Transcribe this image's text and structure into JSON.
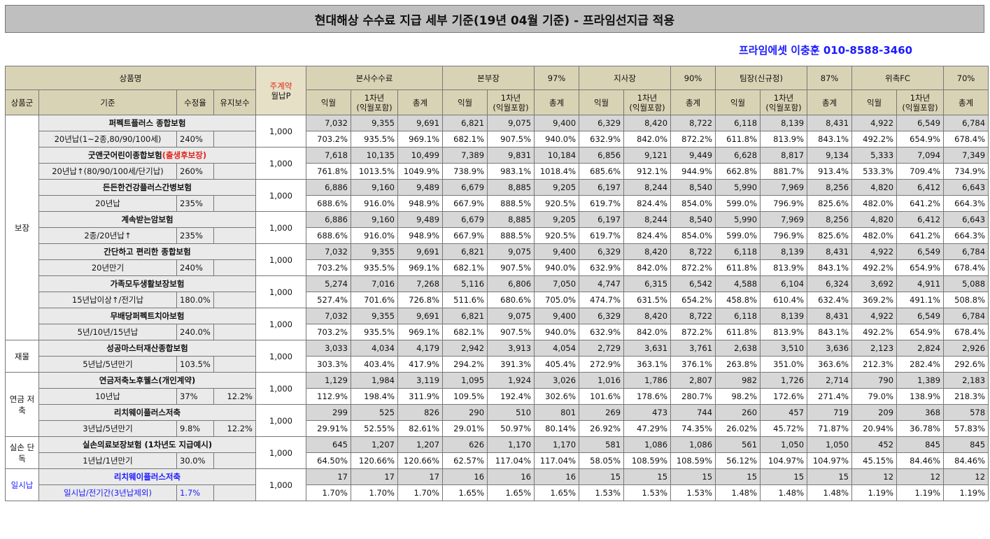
{
  "title": "현대해상 수수료 지급 세부 기준(19년 04월 기준) - 프라임선지급 적용",
  "contact": "프라임에셋 이충훈 010-8588-3460",
  "header": {
    "product_name": "상품명",
    "premium_label_top": "주계약",
    "premium_label_bottom": "월납P",
    "group": "상품군",
    "basis": "기준",
    "commission_rate": "수정율",
    "maintenance": "유지보수",
    "tiers": [
      {
        "name": "본사수수료",
        "pct": ""
      },
      {
        "name": "본부장",
        "pct": "97%"
      },
      {
        "name": "지사장",
        "pct": "90%"
      },
      {
        "name": "팀장(신규정)",
        "pct": "87%"
      },
      {
        "name": "위촉FC",
        "pct": "70%"
      }
    ],
    "col_next_month": "익월",
    "col_year1_top": "1차년",
    "col_year1_bottom": "(익월포함)",
    "col_total": "총계"
  },
  "groups": [
    {
      "label": "보장",
      "products": [
        {
          "name": "퍼펙트플러스 종합보험",
          "basis": "20년납(1~2종,80/90/100세)",
          "rate": "240%",
          "maint": "",
          "premium": "1,000",
          "nums": [
            "7,032",
            "9,355",
            "9,691",
            "6,821",
            "9,075",
            "9,400",
            "6,329",
            "8,420",
            "8,722",
            "6,118",
            "8,139",
            "8,431",
            "4,922",
            "6,549",
            "6,784"
          ],
          "pcts": [
            "703.2%",
            "935.5%",
            "969.1%",
            "682.1%",
            "907.5%",
            "940.0%",
            "632.9%",
            "842.0%",
            "872.2%",
            "611.8%",
            "813.9%",
            "843.1%",
            "492.2%",
            "654.9%",
            "678.4%"
          ]
        },
        {
          "name": "굿앤굿어린이종합보험",
          "name_extra": "(출생후보장)",
          "basis": "20년납↑(80/90/100세/단기납)",
          "rate": "260%",
          "maint": "",
          "premium": "1,000",
          "nums": [
            "7,618",
            "10,135",
            "10,499",
            "7,389",
            "9,831",
            "10,184",
            "6,856",
            "9,121",
            "9,449",
            "6,628",
            "8,817",
            "9,134",
            "5,333",
            "7,094",
            "7,349"
          ],
          "pcts": [
            "761.8%",
            "1013.5%",
            "1049.9%",
            "738.9%",
            "983.1%",
            "1018.4%",
            "685.6%",
            "912.1%",
            "944.9%",
            "662.8%",
            "881.7%",
            "913.4%",
            "533.3%",
            "709.4%",
            "734.9%"
          ]
        },
        {
          "name": "든든한건강플러스간병보험",
          "basis": "20년납",
          "rate": "235%",
          "maint": "",
          "premium": "1,000",
          "nums": [
            "6,886",
            "9,160",
            "9,489",
            "6,679",
            "8,885",
            "9,205",
            "6,197",
            "8,244",
            "8,540",
            "5,990",
            "7,969",
            "8,256",
            "4,820",
            "6,412",
            "6,643"
          ],
          "pcts": [
            "688.6%",
            "916.0%",
            "948.9%",
            "667.9%",
            "888.5%",
            "920.5%",
            "619.7%",
            "824.4%",
            "854.0%",
            "599.0%",
            "796.9%",
            "825.6%",
            "482.0%",
            "641.2%",
            "664.3%"
          ]
        },
        {
          "name": "계속받는암보험",
          "basis": "2종/20년납↑",
          "rate": "235%",
          "maint": "",
          "premium": "1,000",
          "nums": [
            "6,886",
            "9,160",
            "9,489",
            "6,679",
            "8,885",
            "9,205",
            "6,197",
            "8,244",
            "8,540",
            "5,990",
            "7,969",
            "8,256",
            "4,820",
            "6,412",
            "6,643"
          ],
          "pcts": [
            "688.6%",
            "916.0%",
            "948.9%",
            "667.9%",
            "888.5%",
            "920.5%",
            "619.7%",
            "824.4%",
            "854.0%",
            "599.0%",
            "796.9%",
            "825.6%",
            "482.0%",
            "641.2%",
            "664.3%"
          ]
        },
        {
          "name": "간단하고 편리한 종합보험",
          "basis": "20년만기",
          "rate": "240%",
          "maint": "",
          "premium": "1,000",
          "nums": [
            "7,032",
            "9,355",
            "9,691",
            "6,821",
            "9,075",
            "9,400",
            "6,329",
            "8,420",
            "8,722",
            "6,118",
            "8,139",
            "8,431",
            "4,922",
            "6,549",
            "6,784"
          ],
          "pcts": [
            "703.2%",
            "935.5%",
            "969.1%",
            "682.1%",
            "907.5%",
            "940.0%",
            "632.9%",
            "842.0%",
            "872.2%",
            "611.8%",
            "813.9%",
            "843.1%",
            "492.2%",
            "654.9%",
            "678.4%"
          ]
        },
        {
          "name": "가족모두생활보장보험",
          "basis": "15년납이상↑/전기납",
          "rate": "180.0%",
          "maint": "",
          "premium": "1,000",
          "nums": [
            "5,274",
            "7,016",
            "7,268",
            "5,116",
            "6,806",
            "7,050",
            "4,747",
            "6,315",
            "6,542",
            "4,588",
            "6,104",
            "6,324",
            "3,692",
            "4,911",
            "5,088"
          ],
          "pcts": [
            "527.4%",
            "701.6%",
            "726.8%",
            "511.6%",
            "680.6%",
            "705.0%",
            "474.7%",
            "631.5%",
            "654.2%",
            "458.8%",
            "610.4%",
            "632.4%",
            "369.2%",
            "491.1%",
            "508.8%"
          ]
        },
        {
          "name": "무배당퍼펙트치아보험",
          "basis": "5년/10년/15년납",
          "rate": "240.0%",
          "maint": "",
          "premium": "1,000",
          "nums": [
            "7,032",
            "9,355",
            "9,691",
            "6,821",
            "9,075",
            "9,400",
            "6,329",
            "8,420",
            "8,722",
            "6,118",
            "8,139",
            "8,431",
            "4,922",
            "6,549",
            "6,784"
          ],
          "pcts": [
            "703.2%",
            "935.5%",
            "969.1%",
            "682.1%",
            "907.5%",
            "940.0%",
            "632.9%",
            "842.0%",
            "872.2%",
            "611.8%",
            "813.9%",
            "843.1%",
            "492.2%",
            "654.9%",
            "678.4%"
          ]
        }
      ]
    },
    {
      "label": "재물",
      "products": [
        {
          "name": "성공마스터재산종합보험",
          "basis": "5년납/5년만기",
          "rate": "103.5%",
          "maint": "",
          "premium": "1,000",
          "nums": [
            "3,033",
            "4,034",
            "4,179",
            "2,942",
            "3,913",
            "4,054",
            "2,729",
            "3,631",
            "3,761",
            "2,638",
            "3,510",
            "3,636",
            "2,123",
            "2,824",
            "2,926"
          ],
          "pcts": [
            "303.3%",
            "403.4%",
            "417.9%",
            "294.2%",
            "391.3%",
            "405.4%",
            "272.9%",
            "363.1%",
            "376.1%",
            "263.8%",
            "351.0%",
            "363.6%",
            "212.3%",
            "282.4%",
            "292.6%"
          ]
        }
      ]
    },
    {
      "label": "연금 저축",
      "products": [
        {
          "name": "연금저축노후웰스(개인계약)",
          "basis": "10년납",
          "rate": "37%",
          "maint": "12.2%",
          "premium": "1,000",
          "nums": [
            "1,129",
            "1,984",
            "3,119",
            "1,095",
            "1,924",
            "3,026",
            "1,016",
            "1,786",
            "2,807",
            "982",
            "1,726",
            "2,714",
            "790",
            "1,389",
            "2,183"
          ],
          "pcts": [
            "112.9%",
            "198.4%",
            "311.9%",
            "109.5%",
            "192.4%",
            "302.6%",
            "101.6%",
            "178.6%",
            "280.7%",
            "98.2%",
            "172.6%",
            "271.4%",
            "79.0%",
            "138.9%",
            "218.3%"
          ]
        },
        {
          "name": "리치웨이플러스저축",
          "basis": "3년납/5년만기",
          "rate": "9.8%",
          "maint": "12.2%",
          "premium": "1,000",
          "nums": [
            "299",
            "525",
            "826",
            "290",
            "510",
            "801",
            "269",
            "473",
            "744",
            "260",
            "457",
            "719",
            "209",
            "368",
            "578"
          ],
          "pcts": [
            "29.91%",
            "52.55%",
            "82.61%",
            "29.01%",
            "50.97%",
            "80.14%",
            "26.92%",
            "47.29%",
            "74.35%",
            "26.02%",
            "45.72%",
            "71.87%",
            "20.94%",
            "36.78%",
            "57.83%"
          ]
        }
      ]
    },
    {
      "label": "실손 단독",
      "products": [
        {
          "name": "실손의료보장보험 (1차년도 지급예시)",
          "basis": "1년납/1년만기",
          "rate": "30.0%",
          "maint": "",
          "premium": "1,000",
          "nums": [
            "645",
            "1,207",
            "1,207",
            "626",
            "1,170",
            "1,170",
            "581",
            "1,086",
            "1,086",
            "561",
            "1,050",
            "1,050",
            "452",
            "845",
            "845"
          ],
          "pcts": [
            "64.50%",
            "120.66%",
            "120.66%",
            "62.57%",
            "117.04%",
            "117.04%",
            "58.05%",
            "108.59%",
            "108.59%",
            "56.12%",
            "104.97%",
            "104.97%",
            "45.15%",
            "84.46%",
            "84.46%"
          ]
        }
      ]
    },
    {
      "label": "일시납",
      "blue": true,
      "products": [
        {
          "name": "리치웨이플러스저축",
          "basis": "일시납/전기간(3년납제외)",
          "rate": "1.7%",
          "maint": "",
          "premium": "1,000",
          "nums": [
            "17",
            "17",
            "17",
            "16",
            "16",
            "16",
            "15",
            "15",
            "15",
            "15",
            "15",
            "15",
            "12",
            "12",
            "12"
          ],
          "pcts": [
            "1.70%",
            "1.70%",
            "1.70%",
            "1.65%",
            "1.65%",
            "1.65%",
            "1.53%",
            "1.53%",
            "1.53%",
            "1.48%",
            "1.48%",
            "1.48%",
            "1.19%",
            "1.19%",
            "1.19%"
          ]
        }
      ]
    }
  ]
}
